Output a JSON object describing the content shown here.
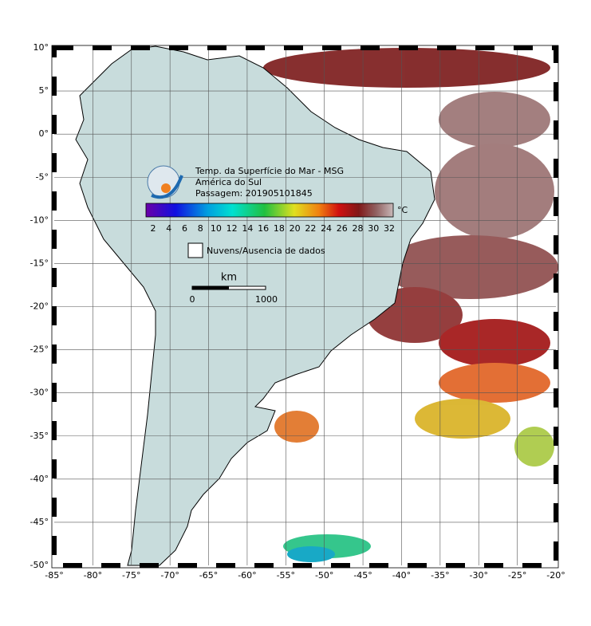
{
  "title": {
    "lines": [
      "Temp. da Superfície do Mar - MSG",
      "América do Sul",
      "Passagem: 201905101845"
    ]
  },
  "colorbar": {
    "labels": [
      "2",
      "4",
      "6",
      "8",
      "10",
      "12",
      "14",
      "16",
      "18",
      "20",
      "22",
      "24",
      "26",
      "28",
      "30",
      "32"
    ],
    "unit": "°C"
  },
  "legend": {
    "label": "Nuvens/Ausencia de dados"
  },
  "scale_bar": {
    "unit": "km",
    "start": "0",
    "end": "1000"
  },
  "axes": {
    "longitude_labels": [
      "-85°",
      "-80°",
      "-75°",
      "-70°",
      "-65°",
      "-60°",
      "-55°",
      "-50°",
      "-45°",
      "-40°",
      "-35°",
      "-30°",
      "-25°",
      "-20°"
    ],
    "latitude_labels": [
      "10°",
      "5°",
      "0°",
      "-5°",
      "-10°",
      "-15°",
      "-20°",
      "-25°",
      "-30°",
      "-35°",
      "-40°",
      "-45°",
      "-50°"
    ]
  }
}
